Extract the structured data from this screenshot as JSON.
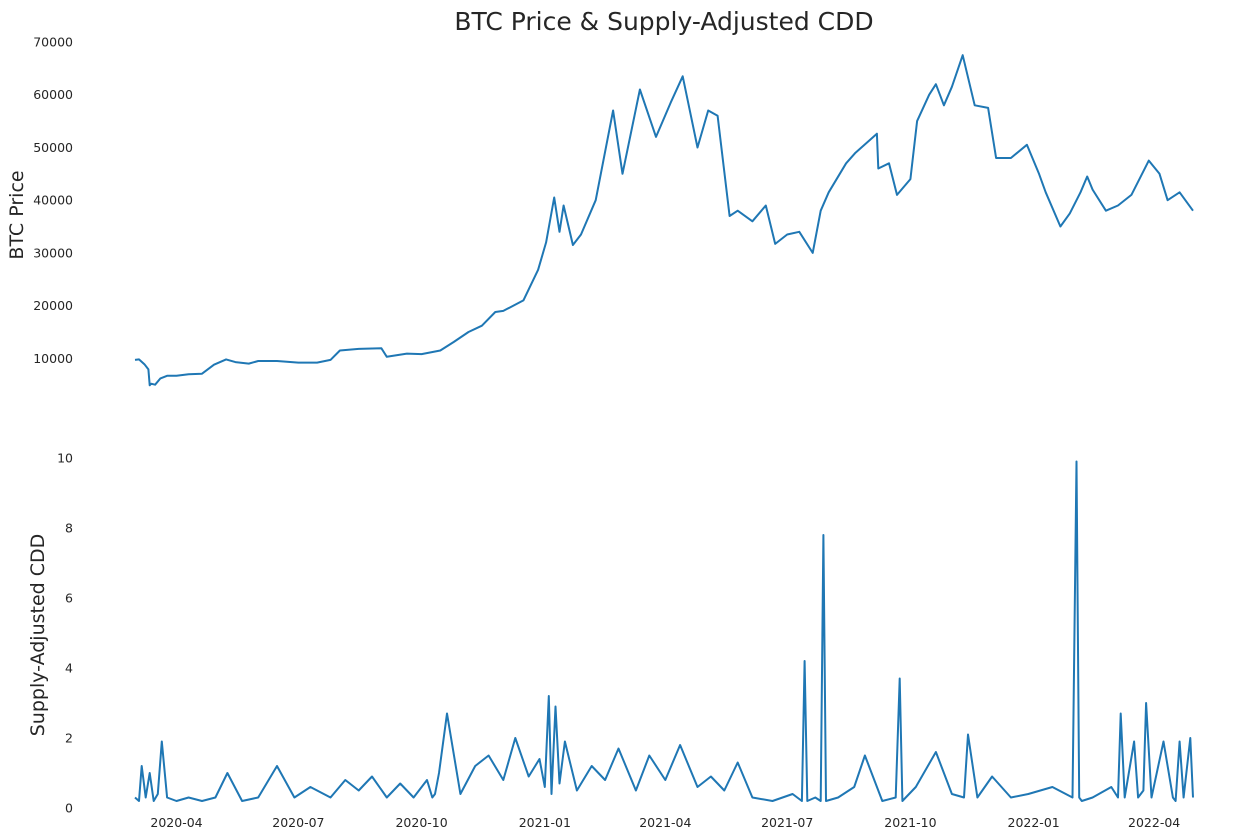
{
  "chart_data": [
    {
      "type": "line",
      "title": "BTC Price & Supply-Adjusted CDD",
      "ylabel": "BTC  Price",
      "xlabel": "",
      "ylim": [
        4000,
        70000
      ],
      "yticks": [
        10000,
        20000,
        30000,
        40000,
        50000,
        60000,
        70000
      ],
      "grid": false,
      "series": [
        {
          "color": "#1f77b4",
          "x": [
            "2020-03-01",
            "2020-03-04",
            "2020-03-08",
            "2020-03-11",
            "2020-03-12",
            "2020-03-13",
            "2020-03-16",
            "2020-03-20",
            "2020-03-25",
            "2020-04-01",
            "2020-04-10",
            "2020-04-20",
            "2020-04-29",
            "2020-05-08",
            "2020-05-15",
            "2020-05-25",
            "2020-06-01",
            "2020-06-15",
            "2020-07-01",
            "2020-07-15",
            "2020-07-25",
            "2020-08-01",
            "2020-08-15",
            "2020-09-01",
            "2020-09-05",
            "2020-09-20",
            "2020-10-01",
            "2020-10-15",
            "2020-10-25",
            "2020-11-05",
            "2020-11-15",
            "2020-11-25",
            "2020-12-01",
            "2020-12-16",
            "2020-12-27",
            "2021-01-02",
            "2021-01-08",
            "2021-01-12",
            "2021-01-15",
            "2021-01-22",
            "2021-01-28",
            "2021-02-08",
            "2021-02-21",
            "2021-02-28",
            "2021-03-13",
            "2021-03-25",
            "2021-04-05",
            "2021-04-14",
            "2021-04-25",
            "2021-05-03",
            "2021-05-10",
            "2021-05-19",
            "2021-05-25",
            "2021-06-05",
            "2021-06-15",
            "2021-06-22",
            "2021-07-01",
            "2021-07-10",
            "2021-07-20",
            "2021-07-26",
            "2021-08-01",
            "2021-08-14",
            "2021-08-21",
            "2021-09-06",
            "2021-09-07",
            "2021-09-15",
            "2021-09-21",
            "2021-10-01",
            "2021-10-06",
            "2021-10-15",
            "2021-10-20",
            "2021-10-26",
            "2021-11-01",
            "2021-11-09",
            "2021-11-18",
            "2021-11-28",
            "2021-12-04",
            "2021-12-15",
            "2021-12-27",
            "2022-01-05",
            "2022-01-10",
            "2022-01-21",
            "2022-01-28",
            "2022-02-05",
            "2022-02-10",
            "2022-02-14",
            "2022-02-24",
            "2022-03-05",
            "2022-03-15",
            "2022-03-28",
            "2022-04-05",
            "2022-04-11",
            "2022-04-20",
            "2022-04-30"
          ],
          "y": [
            9700,
            9800,
            8900,
            7900,
            4900,
            5200,
            5000,
            6200,
            6700,
            6700,
            7000,
            7100,
            8800,
            9800,
            9300,
            9000,
            9500,
            9500,
            9200,
            9200,
            9700,
            11500,
            11800,
            11900,
            10300,
            10900,
            10800,
            11500,
            13100,
            15000,
            16200,
            18800,
            19000,
            21000,
            26800,
            32000,
            40500,
            34000,
            39000,
            31500,
            33500,
            40000,
            57000,
            45000,
            61000,
            52000,
            58500,
            63500,
            50000,
            57000,
            56000,
            37000,
            38000,
            36000,
            39000,
            31700,
            33500,
            34000,
            30000,
            38000,
            41500,
            47000,
            49000,
            52600,
            46000,
            47000,
            41000,
            44000,
            55000,
            60000,
            62000,
            58000,
            61500,
            67500,
            58000,
            57500,
            48000,
            48000,
            50500,
            45000,
            41500,
            35000,
            37500,
            41500,
            44500,
            42000,
            38000,
            39000,
            41000,
            47500,
            45000,
            40000,
            41500,
            38000
          ]
        }
      ]
    },
    {
      "type": "line",
      "title": "",
      "ylabel": "Supply-Adjusted CDD",
      "xlabel": "",
      "ylim": [
        0,
        10
      ],
      "yticks": [
        0,
        2,
        4,
        6,
        8,
        10
      ],
      "xticks": [
        "2020-04",
        "2020-07",
        "2020-10",
        "2021-01",
        "2021-04",
        "2021-07",
        "2021-10",
        "2022-01",
        "2022-04"
      ],
      "grid": false,
      "series": [
        {
          "color": "#1f77b4",
          "x": [
            "2020-03-01",
            "2020-03-04",
            "2020-03-06",
            "2020-03-09",
            "2020-03-12",
            "2020-03-15",
            "2020-03-18",
            "2020-03-21",
            "2020-03-25",
            "2020-04-01",
            "2020-04-10",
            "2020-04-20",
            "2020-04-30",
            "2020-05-09",
            "2020-05-20",
            "2020-06-01",
            "2020-06-15",
            "2020-06-28",
            "2020-07-10",
            "2020-07-25",
            "2020-08-05",
            "2020-08-15",
            "2020-08-25",
            "2020-09-05",
            "2020-09-15",
            "2020-09-25",
            "2020-10-05",
            "2020-10-09",
            "2020-10-11",
            "2020-10-14",
            "2020-10-20",
            "2020-10-30",
            "2020-11-10",
            "2020-11-20",
            "2020-12-01",
            "2020-12-10",
            "2020-12-20",
            "2020-12-28",
            "2021-01-01",
            "2021-01-04",
            "2021-01-06",
            "2021-01-09",
            "2021-01-12",
            "2021-01-16",
            "2021-01-25",
            "2021-02-05",
            "2021-02-15",
            "2021-02-25",
            "2021-03-10",
            "2021-03-20",
            "2021-04-01",
            "2021-04-12",
            "2021-04-25",
            "2021-05-05",
            "2021-05-15",
            "2021-05-25",
            "2021-06-05",
            "2021-06-20",
            "2021-07-05",
            "2021-07-12",
            "2021-07-14",
            "2021-07-16",
            "2021-07-22",
            "2021-07-26",
            "2021-07-28",
            "2021-07-30",
            "2021-08-08",
            "2021-08-20",
            "2021-08-28",
            "2021-09-10",
            "2021-09-20",
            "2021-09-23",
            "2021-09-25",
            "2021-10-05",
            "2021-10-20",
            "2021-11-01",
            "2021-11-10",
            "2021-11-13",
            "2021-11-20",
            "2021-12-01",
            "2021-12-15",
            "2021-12-28",
            "2022-01-15",
            "2022-01-30",
            "2022-02-02",
            "2022-02-04",
            "2022-02-06",
            "2022-02-14",
            "2022-02-28",
            "2022-03-05",
            "2022-03-07",
            "2022-03-10",
            "2022-03-17",
            "2022-03-20",
            "2022-03-24",
            "2022-03-26",
            "2022-03-30",
            "2022-04-08",
            "2022-04-15",
            "2022-04-17",
            "2022-04-20",
            "2022-04-23",
            "2022-04-28",
            "2022-04-30"
          ],
          "y": [
            0.3,
            0.2,
            1.2,
            0.3,
            1.0,
            0.2,
            0.4,
            1.9,
            0.3,
            0.2,
            0.3,
            0.2,
            0.3,
            1.0,
            0.2,
            0.3,
            1.2,
            0.3,
            0.6,
            0.3,
            0.8,
            0.5,
            0.9,
            0.3,
            0.7,
            0.3,
            0.8,
            0.3,
            0.4,
            1.0,
            2.7,
            0.4,
            1.2,
            1.5,
            0.8,
            2.0,
            0.9,
            1.4,
            0.6,
            3.2,
            0.4,
            2.9,
            0.7,
            1.9,
            0.5,
            1.2,
            0.8,
            1.7,
            0.5,
            1.5,
            0.8,
            1.8,
            0.6,
            0.9,
            0.5,
            1.3,
            0.3,
            0.2,
            0.4,
            0.2,
            4.2,
            0.2,
            0.3,
            0.2,
            7.8,
            0.2,
            0.3,
            0.6,
            1.5,
            0.2,
            0.3,
            3.7,
            0.2,
            0.6,
            1.6,
            0.4,
            0.3,
            2.1,
            0.3,
            0.9,
            0.3,
            0.4,
            0.6,
            0.3,
            9.9,
            0.3,
            0.2,
            0.3,
            0.6,
            0.3,
            2.7,
            0.3,
            1.9,
            0.3,
            0.5,
            3.0,
            0.3,
            1.9,
            0.3,
            0.2,
            1.9,
            0.3,
            2.0,
            0.3
          ]
        }
      ]
    }
  ]
}
